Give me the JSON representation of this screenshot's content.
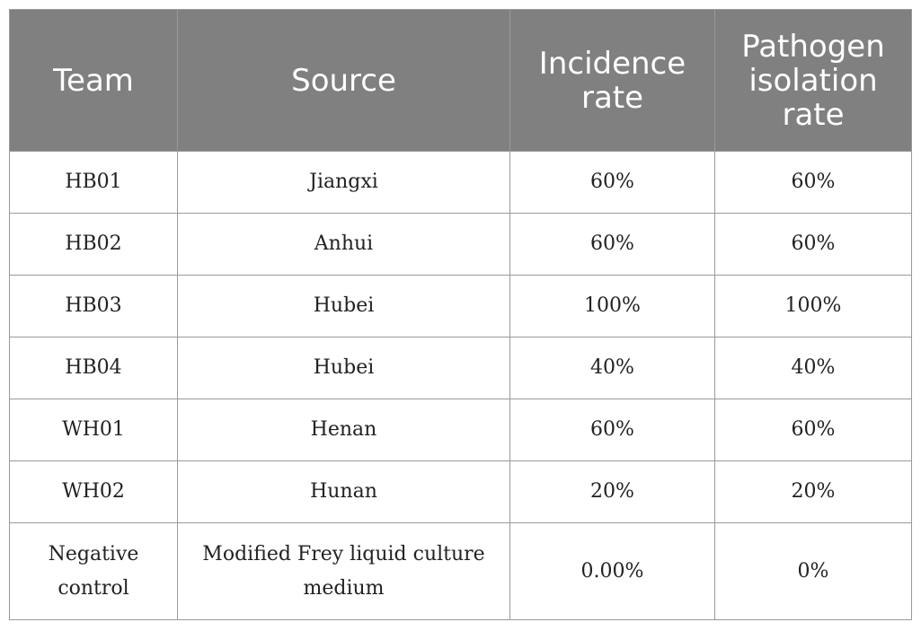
{
  "table": {
    "headers": {
      "team": "Team",
      "source": "Source",
      "incidence": "Incidence rate",
      "pathogen": "Pathogen isolation rate"
    },
    "rows": [
      {
        "team": "HB01",
        "source": "Jiangxi",
        "incidence": "60%",
        "pathogen": "60%"
      },
      {
        "team": "HB02",
        "source": "Anhui",
        "incidence": "60%",
        "pathogen": "60%"
      },
      {
        "team": "HB03",
        "source": "Hubei",
        "incidence": "100%",
        "pathogen": "100%"
      },
      {
        "team": "HB04",
        "source": "Hubei",
        "incidence": "40%",
        "pathogen": "40%"
      },
      {
        "team": "WH01",
        "source": "Henan",
        "incidence": "60%",
        "pathogen": "60%"
      },
      {
        "team": "WH02",
        "source": "Hunan",
        "incidence": "20%",
        "pathogen": "20%"
      },
      {
        "team": "Negative control",
        "source": "Modified Frey liquid culture medium",
        "incidence": "0.00%",
        "pathogen": "0%"
      }
    ]
  },
  "colors": {
    "header_background": "#808080",
    "header_text": "#ffffff",
    "border": "#9a9a9a",
    "body_text": "#222222"
  }
}
